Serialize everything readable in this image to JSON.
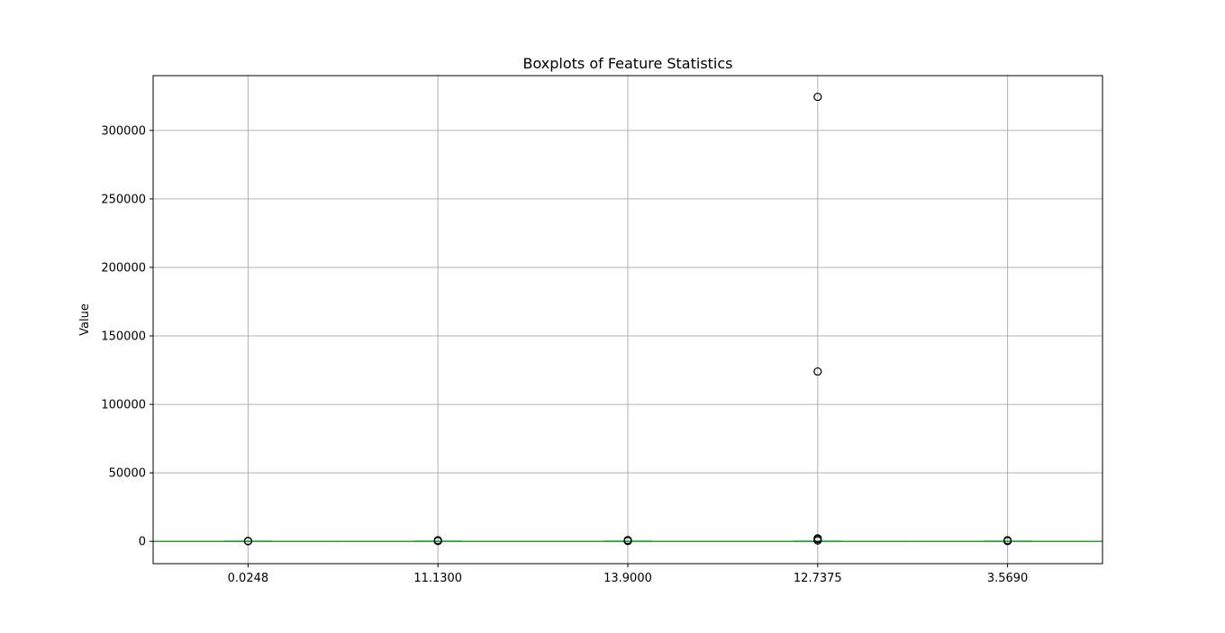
{
  "chart_data": {
    "type": "boxplot",
    "title": "Boxplots of Feature Statistics",
    "xlabel": "",
    "ylabel": "Value",
    "ylim": [
      -16300,
      340000
    ],
    "yticks": [
      0,
      50000,
      100000,
      150000,
      200000,
      250000,
      300000
    ],
    "ytick_labels": [
      "0",
      "50000",
      "100000",
      "150000",
      "200000",
      "250000",
      "300000"
    ],
    "grid": true,
    "categories": [
      "0.0248",
      "11.1300",
      "13.9000",
      "12.7375",
      "3.5690"
    ],
    "boxes": [
      {
        "category": "0.0248",
        "whisker_low": 0,
        "q1": 0,
        "median": 0,
        "q3": 0,
        "whisker_high": 0,
        "outliers": [
          150,
          300
        ]
      },
      {
        "category": "11.1300",
        "whisker_low": 0,
        "q1": 0,
        "median": 0,
        "q3": 0,
        "whisker_high": 0,
        "outliers": [
          200,
          500,
          800
        ]
      },
      {
        "category": "13.9000",
        "whisker_low": 0,
        "q1": 0,
        "median": 0,
        "q3": 0,
        "whisker_high": 0,
        "outliers": [
          250,
          600,
          900
        ]
      },
      {
        "category": "12.7375",
        "whisker_low": 0,
        "q1": 0,
        "median": 0,
        "q3": 0,
        "whisker_high": 0,
        "outliers": [
          600,
          1500,
          2200,
          124000,
          324500
        ]
      },
      {
        "category": "3.5690",
        "whisker_low": 0,
        "q1": 0,
        "median": 0,
        "q3": 0,
        "whisker_high": 0,
        "outliers": [
          200,
          500,
          800
        ]
      }
    ],
    "colors": {
      "box": "#1f77b4",
      "median": "#2ca02c",
      "whisker": "#000000",
      "outlier_edge": "#000000",
      "grid": "#b0b0b0",
      "frame": "#000000"
    }
  }
}
